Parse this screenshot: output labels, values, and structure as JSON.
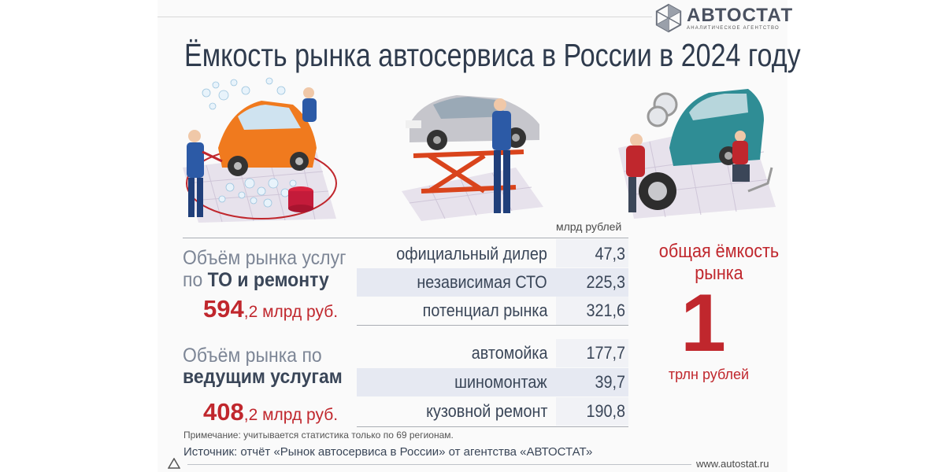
{
  "brand": {
    "name": "АВТОСТАТ",
    "tagline": "АНАЛИТИЧЕСКОЕ АГЕНТСТВО"
  },
  "title": "Ёмкость рынка автосервиса в России в 2024 году",
  "illustrations": [
    "car-wash-illustration",
    "car-lift-illustration",
    "tire-service-illustration"
  ],
  "unit_note": "млрд рублей",
  "groups": [
    {
      "title_light": "Объём рынка услуг",
      "title_prefix": "по ",
      "title_bold": "ТО и ремонту",
      "total_big": "594",
      "total_rest": ",2 млрд руб.",
      "rows": [
        {
          "label": "официальный дилер",
          "value": "47,3"
        },
        {
          "label": "независимая  СТО",
          "value": "225,3"
        },
        {
          "label": "потенциал рынка",
          "value": "321,6"
        }
      ]
    },
    {
      "title_light": "Объём рынка по",
      "title_bold": "ведущим услугам",
      "total_big": "408",
      "total_rest": ",2 млрд руб.",
      "rows": [
        {
          "label": "автомойка",
          "value": "177,7"
        },
        {
          "label": "шиномонтаж",
          "value": "39,7"
        },
        {
          "label": "кузовной ремонт",
          "value": "190,8"
        }
      ]
    }
  ],
  "total": {
    "label": "общая ёмкость рынка",
    "value": "1",
    "unit": "трлн рублей"
  },
  "footnote": "Примечание: учитывается статистика только по 69 регионам.",
  "source": "Источник: отчёт «Рынок автосервиса в России» от агентства «АВТОСТАТ»",
  "site": "www.autostat.ru",
  "colors": {
    "accent_red": "#c0272d",
    "text_dark": "#3a4658",
    "text_light": "#7d8696",
    "row_shade": "#e6e9f2"
  }
}
